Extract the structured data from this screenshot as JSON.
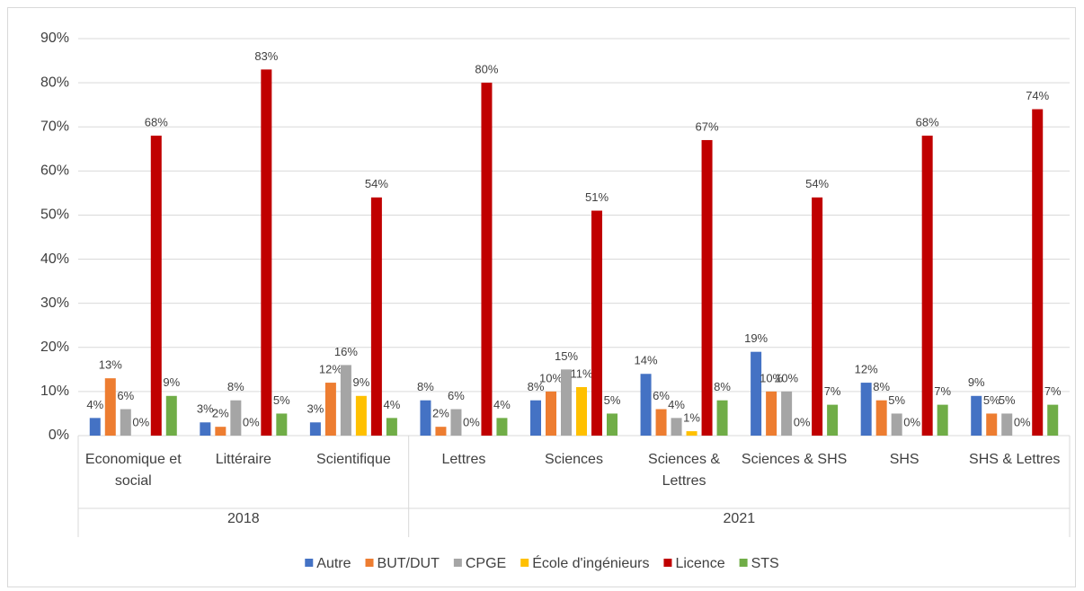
{
  "chart_data": {
    "type": "bar",
    "categories": [
      "Economique et social",
      "Littéraire",
      "Scientifique",
      "Lettres",
      "Sciences",
      "Sciences & Lettres",
      "Sciences & SHS",
      "SHS",
      "SHS & Lettres"
    ],
    "groups": [
      {
        "label": "2018",
        "span": 3
      },
      {
        "label": "2021",
        "span": 6
      }
    ],
    "series": [
      {
        "name": "Autre",
        "color": "#4472c4",
        "values": [
          4,
          3,
          3,
          8,
          8,
          14,
          19,
          12,
          9
        ],
        "value_labels": [
          "4%",
          "3%",
          "3%",
          "8%",
          "8%",
          "14%",
          "19%",
          "12%",
          "9%"
        ]
      },
      {
        "name": "BUT/DUT",
        "color": "#ed7d31",
        "values": [
          13,
          2,
          12,
          2,
          10,
          6,
          10,
          8,
          5
        ],
        "value_labels": [
          "13%",
          "2%",
          "12%",
          "2%",
          "10%",
          "6%",
          "10%",
          "8%",
          "5%"
        ]
      },
      {
        "name": "CPGE",
        "color": "#a5a5a5",
        "values": [
          6,
          8,
          16,
          6,
          15,
          4,
          10,
          5,
          5
        ],
        "value_labels": [
          "6%",
          "8%",
          "16%",
          "6%",
          "15%",
          "4%",
          "10%",
          "5%",
          "5%"
        ]
      },
      {
        "name": "École d'ingénieurs",
        "color": "#ffc000",
        "values": [
          0,
          0,
          9,
          0,
          11,
          1,
          0,
          0,
          0
        ],
        "value_labels": [
          "0%",
          "0%",
          "9%",
          "0%",
          "11%",
          "1%",
          "0%",
          "0%",
          "0%"
        ]
      },
      {
        "name": "Licence",
        "color": "#c00000",
        "values": [
          68,
          83,
          54,
          80,
          51,
          67,
          54,
          68,
          74
        ],
        "value_labels": [
          "68%",
          "83%",
          "54%",
          "80%",
          "51%",
          "67%",
          "54%",
          "68%",
          "74%"
        ]
      },
      {
        "name": "STS",
        "color": "#70ad47",
        "values": [
          9,
          5,
          4,
          4,
          5,
          8,
          7,
          7,
          7
        ],
        "value_labels": [
          "9%",
          "5%",
          "4%",
          "4%",
          "5%",
          "8%",
          "7%",
          "7%",
          "7%"
        ]
      }
    ],
    "ylim": [
      0,
      90
    ],
    "yticks": [
      {
        "value": 0,
        "label": "0%"
      },
      {
        "value": 10,
        "label": "10%"
      },
      {
        "value": 20,
        "label": "20%"
      },
      {
        "value": 30,
        "label": "30%"
      },
      {
        "value": 40,
        "label": "40%"
      },
      {
        "value": 50,
        "label": "50%"
      },
      {
        "value": 60,
        "label": "60%"
      },
      {
        "value": 70,
        "label": "70%"
      },
      {
        "value": 80,
        "label": "80%"
      },
      {
        "value": 90,
        "label": "90%"
      }
    ],
    "grid": true,
    "legend": "bottom"
  }
}
